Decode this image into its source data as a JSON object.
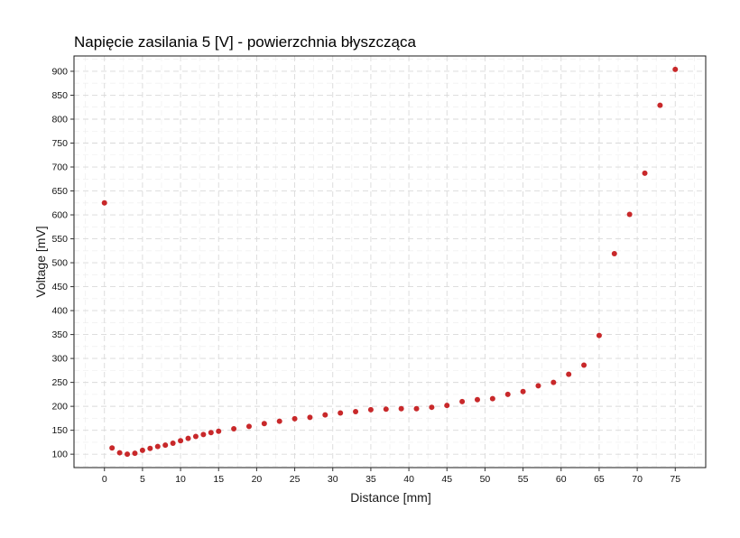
{
  "chart_data": {
    "type": "scatter",
    "title": "Napięcie zasilania 5 [V] - powierzchnia błyszcząca",
    "xlabel": "Distance [mm]",
    "ylabel": "Voltage [mV]",
    "xlim": [
      -4,
      79
    ],
    "ylim": [
      72,
      932
    ],
    "xticks": [
      0,
      5,
      10,
      15,
      20,
      25,
      30,
      35,
      40,
      45,
      50,
      55,
      60,
      65,
      70,
      75
    ],
    "yticks": [
      100,
      150,
      200,
      250,
      300,
      350,
      400,
      450,
      500,
      550,
      600,
      650,
      700,
      750,
      800,
      850,
      900
    ],
    "grid": true,
    "point_color": "#c8282a",
    "series": [
      {
        "x": [
          0,
          1,
          2,
          3,
          4,
          5,
          6,
          7,
          8,
          9,
          10,
          11,
          12,
          13,
          14,
          15,
          17,
          19,
          21,
          23,
          25,
          27,
          29,
          31,
          33,
          35,
          37,
          39,
          41,
          43,
          45,
          47,
          49,
          51,
          53,
          55,
          57,
          59,
          61,
          63,
          65,
          67,
          69,
          71,
          73,
          75
        ],
        "y": [
          625,
          113,
          103,
          100,
          102,
          108,
          112,
          116,
          119,
          123,
          128,
          133,
          137,
          141,
          145,
          148,
          153,
          158,
          164,
          169,
          174,
          177,
          182,
          186,
          189,
          193,
          194,
          195,
          195,
          198,
          202,
          210,
          214,
          216,
          225,
          231,
          243,
          250,
          267,
          286,
          348,
          519,
          601,
          687,
          829,
          904
        ]
      }
    ]
  }
}
